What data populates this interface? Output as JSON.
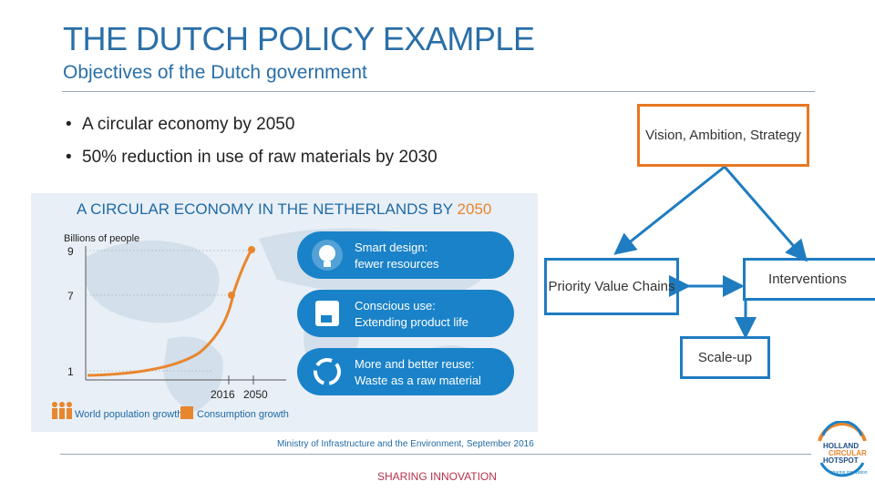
{
  "slide": {
    "title": "THE DUTCH POLICY EXAMPLE",
    "subtitle": "Objectives of the Dutch government",
    "bullets": [
      "A circular economy by 2050",
      "50% reduction in use of raw materials by 2030"
    ],
    "footer": "SHARING INNOVATION"
  },
  "diagram": {
    "vision": "Vision, Ambition, Strategy",
    "priority": "Priority Value Chains",
    "interventions": "Interventions",
    "scaleup": "Scale-up",
    "colors": {
      "vision_border": "#e87722",
      "box_border": "#1f7cc1",
      "arrow": "#1f7cc1"
    }
  },
  "infographic": {
    "title_prefix": "A CIRCULAR ECONOMY IN THE NETHERLANDS BY ",
    "title_year": "2050",
    "ylabel": "Billions of people",
    "yticks": [
      "9",
      "7",
      "1"
    ],
    "xticks": [
      "2016",
      "2050"
    ],
    "pills": [
      {
        "line1": "Smart design:",
        "line2": "fewer resources",
        "icon": "lightbulb-icon"
      },
      {
        "line1": "Conscious use:",
        "line2": "Extending product life",
        "icon": "coffee-machine-icon"
      },
      {
        "line1": "More and better reuse:",
        "line2": "Waste as a raw material",
        "icon": "recycle-icon"
      }
    ],
    "legend": [
      "World population growth",
      "Consumption growth"
    ],
    "source": "Ministry of Infrastructure and the Environment, September 2016"
  },
  "logo": {
    "line1": "HOLLAND",
    "line2": "CIRCULAR",
    "line3": "HOTSPOT",
    "tagline": "sharing innovation"
  }
}
